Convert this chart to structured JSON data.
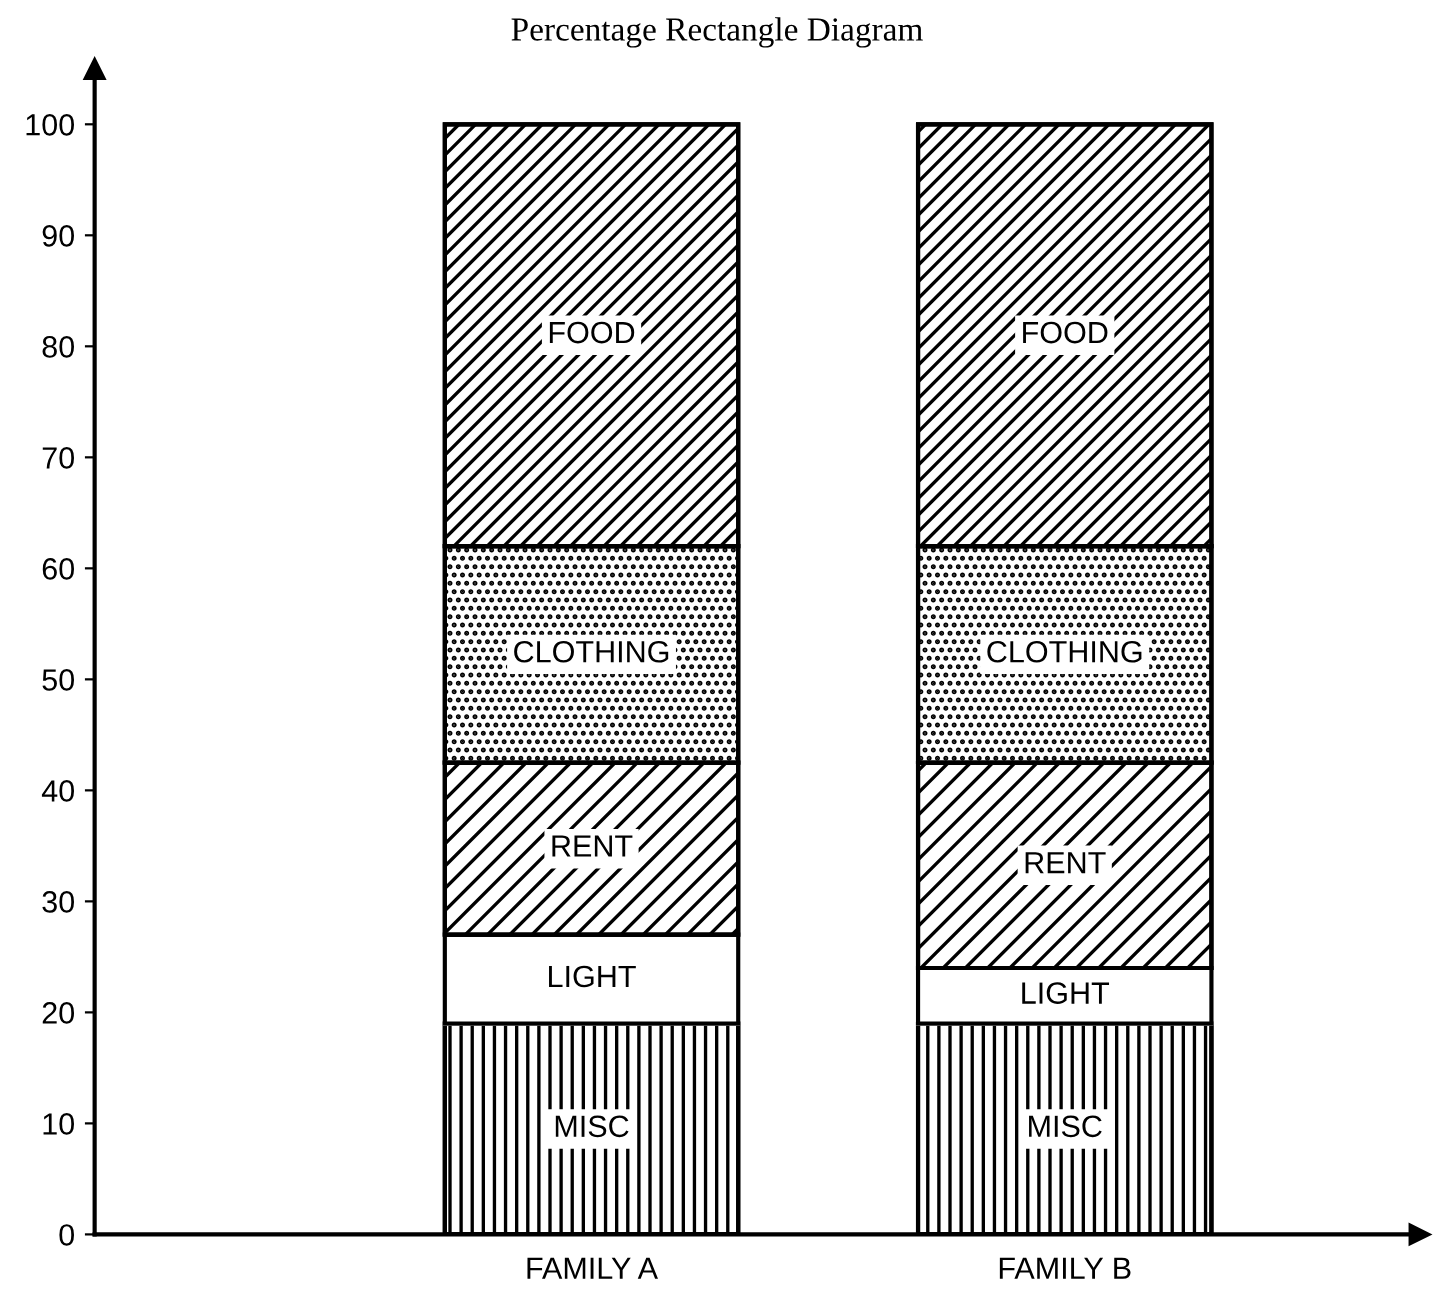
{
  "chart_data": {
    "type": "bar",
    "title": "Percentage Rectangle Diagram",
    "stacked": true,
    "categories": [
      null,
      "FAMILY A",
      "FAMILY B"
    ],
    "series": [
      {
        "name": "MISC",
        "color": "#000000",
        "values": [
          null,
          19,
          19
        ]
      },
      {
        "name": "LIGHT",
        "color": "#ffffff",
        "values": [
          null,
          8,
          5
        ]
      },
      {
        "name": "RENT",
        "color": "#000000",
        "values": [
          null,
          15.5,
          18.5
        ]
      },
      {
        "name": "CLOTHING",
        "color": "#000000",
        "values": [
          null,
          19.5,
          19.5
        ]
      },
      {
        "name": "FOOD",
        "color": "#000000",
        "values": [
          null,
          38,
          38
        ]
      }
    ],
    "ylim": [
      0,
      105
    ],
    "yticks": [
      0,
      10,
      20,
      30,
      40,
      50,
      60,
      70,
      80,
      90,
      100
    ],
    "grid": false,
    "legend": false
  }
}
